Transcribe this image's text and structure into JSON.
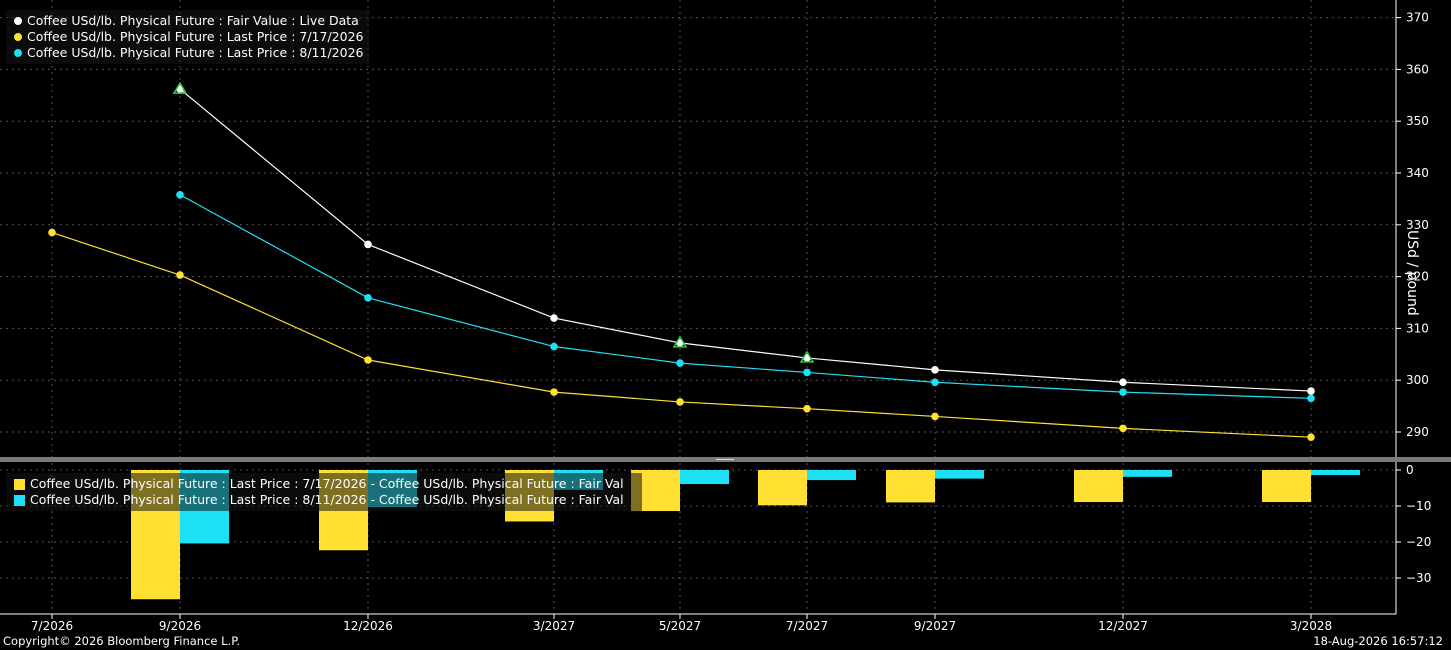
{
  "legend_top": [
    {
      "label": "Coffee USd/lb. Physical Future : Fair Value : Live Data",
      "color": "#ffffff"
    },
    {
      "label": "Coffee USd/lb. Physical Future : Last Price : 7/17/2026",
      "color": "#ffe033"
    },
    {
      "label": "Coffee USd/lb. Physical Future : Last Price : 8/11/2026",
      "color": "#1ee0f5"
    }
  ],
  "legend_bottom": [
    {
      "label": "Coffee USd/lb. Physical Future : Last Price : 7/17/2026 - Coffee USd/lb. Physical Future : Fair Val",
      "color": "#ffe033"
    },
    {
      "label": "Coffee USd/lb. Physical Future : Last Price : 8/11/2026 - Coffee USd/lb. Physical Future : Fair Val",
      "color": "#1ee0f5"
    }
  ],
  "footer": {
    "copyright": "Copyright© 2026 Bloomberg Finance L.P.",
    "timestamp": "18-Aug-2026 16:57:12"
  },
  "chart_data": [
    {
      "type": "line",
      "ylabel": "USd / pound",
      "ylim": [
        285,
        372
      ],
      "yticks": [
        290,
        300,
        310,
        320,
        330,
        340,
        350,
        360,
        370
      ],
      "x": [
        "7/2026",
        "9/2026",
        "12/2026",
        "3/2027",
        "5/2027",
        "7/2027",
        "9/2027",
        "12/2027",
        "3/2028"
      ],
      "grid": true,
      "series": [
        {
          "name": "Coffee USd/lb. Physical Future : Fair Value : Live Data",
          "color": "#ffffff",
          "values": [
            null,
            356.2,
            326.2,
            312.0,
            307.2,
            304.3,
            302.0,
            299.6,
            297.9
          ],
          "triangle_markers": [
            1,
            4,
            5
          ]
        },
        {
          "name": "Coffee USd/lb. Physical Future : Last Price : 7/17/2026",
          "color": "#ffe033",
          "values": [
            328.5,
            320.3,
            303.9,
            297.7,
            295.8,
            294.5,
            293.0,
            290.7,
            289.0
          ]
        },
        {
          "name": "Coffee USd/lb. Physical Future : Last Price : 8/11/2026",
          "color": "#1ee0f5",
          "values": [
            null,
            335.8,
            315.9,
            306.5,
            303.3,
            301.5,
            299.6,
            297.7,
            296.5
          ]
        }
      ]
    },
    {
      "type": "bar",
      "ylim": [
        -38,
        2
      ],
      "yticks": [
        0,
        -10,
        -20,
        -30
      ],
      "x": [
        "7/2026",
        "9/2026",
        "12/2026",
        "3/2027",
        "5/2027",
        "7/2027",
        "9/2027",
        "12/2027",
        "3/2028"
      ],
      "grid": true,
      "series": [
        {
          "name": "Coffee USd/lb. Physical Future : Last Price : 7/17/2026 - Coffee USd/lb. Physical Future : Fair Val",
          "color": "#ffe033",
          "values": [
            null,
            -35.9,
            -22.3,
            -14.3,
            -11.4,
            -9.8,
            -9.0,
            -8.9,
            -8.9
          ]
        },
        {
          "name": "Coffee USd/lb. Physical Future : Last Price : 8/11/2026 - Coffee USd/lb. Physical Future : Fair Val",
          "color": "#1ee0f5",
          "values": [
            null,
            -20.4,
            -10.3,
            -5.5,
            -3.9,
            -2.8,
            -2.4,
            -1.9,
            -1.4
          ]
        }
      ]
    }
  ]
}
